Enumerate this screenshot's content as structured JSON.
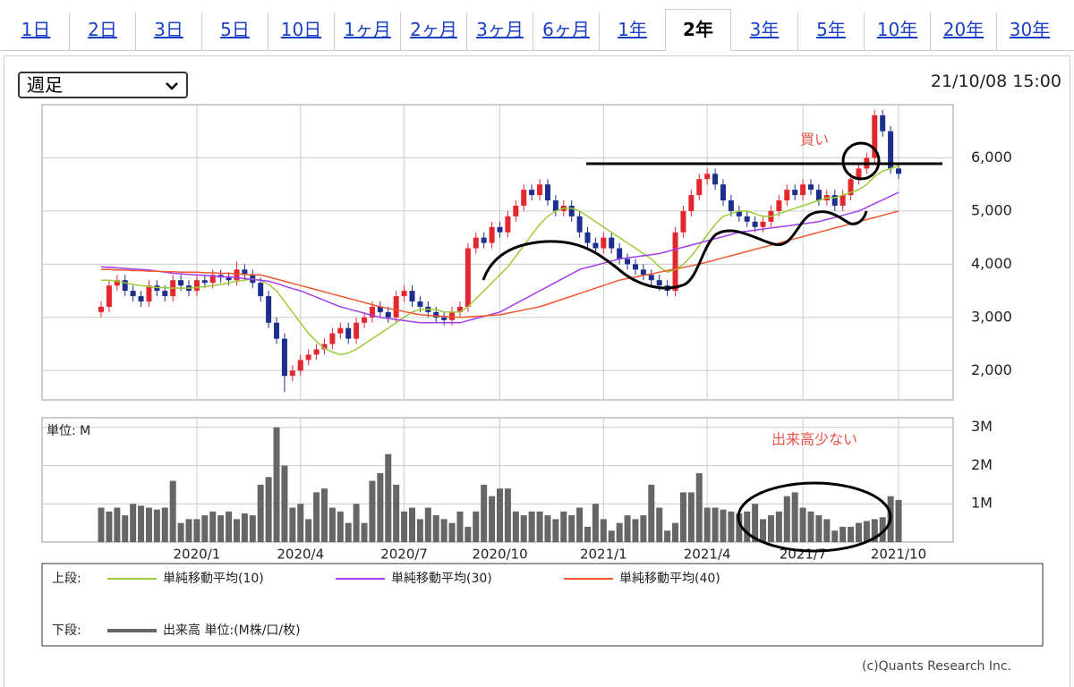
{
  "tabs": [
    "1日",
    "2日",
    "3日",
    "5日",
    "10日",
    "1ヶ月",
    "2ヶ月",
    "3ヶ月",
    "6ヶ月",
    "1年",
    "2年",
    "3年",
    "5年",
    "10年",
    "20年",
    "30年"
  ],
  "selected_tab": 10,
  "period_select": "週足",
  "timestamp": "21/10/08 15:00",
  "legend_labels": {
    "upper": "上段:",
    "lower": "下段:"
  },
  "copyright": "(c)Quants Research Inc.",
  "chart_data": [
    {
      "type": "candlestick",
      "up_color": "#e4262f",
      "down_color": "#1c2f8c",
      "open": [
        3100,
        3200,
        3600,
        3700,
        3500,
        3400,
        3300,
        3600,
        3500,
        3400,
        3700,
        3600,
        3500,
        3700,
        3650,
        3800,
        3750,
        3700,
        3900,
        3800,
        3650,
        3400,
        2900,
        2600,
        1900,
        2000,
        2200,
        2300,
        2400,
        2500,
        2700,
        2800,
        2600,
        2900,
        3000,
        3200,
        3100,
        3000,
        3400,
        3500,
        3300,
        3200,
        3100,
        3000,
        2950,
        3100,
        3200,
        4300,
        4500,
        4400,
        4700,
        4600,
        4900,
        5100,
        5400,
        5300,
        5500,
        5200,
        5000,
        5100,
        4900,
        4600,
        4400,
        4300,
        4500,
        4300,
        4100,
        4000,
        3900,
        3800,
        3700,
        3600,
        3500,
        4600,
        5000,
        5300,
        5600,
        5700,
        5500,
        5200,
        5000,
        4900,
        4800,
        4700,
        4800,
        5000,
        5200,
        5400,
        5300,
        5500,
        5400,
        5200,
        5300,
        5100,
        5300,
        5600,
        5800,
        6000,
        6800,
        6500,
        5800
      ],
      "high": [
        3300,
        3700,
        3800,
        3800,
        3600,
        3500,
        3700,
        3700,
        3600,
        3800,
        3800,
        3700,
        3800,
        3800,
        3900,
        3900,
        3850,
        4050,
        4000,
        3900,
        3750,
        3500,
        3000,
        2700,
        2100,
        2300,
        2400,
        2500,
        2600,
        2800,
        2900,
        2900,
        3000,
        3100,
        3300,
        3300,
        3200,
        3500,
        3600,
        3600,
        3400,
        3300,
        3200,
        3100,
        3200,
        3300,
        4400,
        4600,
        4600,
        4800,
        4800,
        5000,
        5200,
        5500,
        5500,
        5600,
        5600,
        5300,
        5200,
        5200,
        5000,
        4700,
        4500,
        4600,
        4600,
        4400,
        4200,
        4100,
        4000,
        3900,
        3800,
        3700,
        4700,
        5100,
        5400,
        5700,
        5800,
        5800,
        5600,
        5300,
        5100,
        5000,
        4900,
        4900,
        5100,
        5300,
        5500,
        5500,
        5600,
        5600,
        5500,
        5400,
        5400,
        5400,
        5700,
        5900,
        6100,
        6900,
        6900,
        6600,
        5900
      ],
      "low": [
        3000,
        3100,
        3500,
        3400,
        3300,
        3200,
        3200,
        3400,
        3300,
        3300,
        3500,
        3400,
        3400,
        3550,
        3550,
        3650,
        3600,
        3600,
        3700,
        3550,
        3300,
        2800,
        2500,
        1600,
        1800,
        1900,
        2100,
        2200,
        2300,
        2400,
        2600,
        2500,
        2500,
        2800,
        2900,
        3000,
        2900,
        2900,
        3300,
        3200,
        3100,
        3000,
        2900,
        2850,
        2850,
        3000,
        3100,
        4200,
        4300,
        4300,
        4500,
        4500,
        4800,
        5000,
        5200,
        5200,
        5100,
        4900,
        4900,
        4800,
        4500,
        4300,
        4200,
        4200,
        4200,
        4000,
        3900,
        3800,
        3700,
        3600,
        3500,
        3400,
        3400,
        4500,
        4900,
        5200,
        5500,
        5400,
        5100,
        4900,
        4800,
        4700,
        4600,
        4600,
        4700,
        4900,
        5100,
        5200,
        5200,
        5300,
        5100,
        5100,
        5000,
        5000,
        5200,
        5500,
        5700,
        5900,
        6400,
        5700,
        5600
      ],
      "close": [
        3200,
        3600,
        3700,
        3500,
        3400,
        3300,
        3600,
        3500,
        3400,
        3700,
        3600,
        3500,
        3700,
        3650,
        3800,
        3750,
        3700,
        3900,
        3800,
        3650,
        3400,
        2900,
        2600,
        1900,
        2000,
        2200,
        2300,
        2400,
        2500,
        2700,
        2800,
        2600,
        2900,
        3000,
        3200,
        3100,
        3000,
        3400,
        3500,
        3300,
        3200,
        3100,
        3000,
        2950,
        3100,
        3200,
        4300,
        4500,
        4400,
        4700,
        4600,
        4900,
        5100,
        5400,
        5300,
        5500,
        5200,
        5000,
        5100,
        4900,
        4600,
        4400,
        4300,
        4500,
        4300,
        4100,
        4000,
        3900,
        3800,
        3700,
        3600,
        3500,
        4600,
        5000,
        5300,
        5600,
        5700,
        5500,
        5200,
        5000,
        4900,
        4800,
        4700,
        4800,
        5000,
        5200,
        5400,
        5300,
        5500,
        5400,
        5200,
        5300,
        5100,
        5300,
        5600,
        5800,
        6000,
        6800,
        6500,
        5800,
        5700
      ],
      "series": [
        {
          "name": "単純移動平均(10)",
          "color": "#9ccc3a",
          "values": [
            3700,
            3700,
            3680,
            3650,
            3620,
            3600,
            3580,
            3560,
            3560,
            3550,
            3550,
            3550,
            3560,
            3580,
            3600,
            3620,
            3650,
            3680,
            3700,
            3720,
            3700,
            3620,
            3500,
            3300,
            3100,
            2900,
            2700,
            2550,
            2420,
            2350,
            2300,
            2330,
            2400,
            2500,
            2600,
            2700,
            2800,
            2900,
            3000,
            3100,
            3150,
            3150,
            3150,
            3100,
            3100,
            3100,
            3200,
            3350,
            3500,
            3650,
            3800,
            3950,
            4150,
            4350,
            4550,
            4750,
            4900,
            5000,
            5050,
            5050,
            5000,
            4900,
            4800,
            4700,
            4600,
            4500,
            4400,
            4300,
            4200,
            4100,
            3950,
            3850,
            3900,
            4000,
            4150,
            4350,
            4550,
            4750,
            4900,
            4950,
            5000,
            5000,
            4950,
            4900,
            4900,
            4950,
            5000,
            5050,
            5100,
            5150,
            5200,
            5250,
            5250,
            5300,
            5350,
            5400,
            5500,
            5650,
            5750,
            5800,
            5850
          ]
        },
        {
          "name": "単純移動平均(30)",
          "color": "#a43cf0",
          "values": [
            3950,
            3940,
            3930,
            3920,
            3910,
            3900,
            3890,
            3870,
            3850,
            3830,
            3820,
            3810,
            3800,
            3790,
            3780,
            3770,
            3760,
            3750,
            3730,
            3710,
            3700,
            3680,
            3640,
            3590,
            3540,
            3500,
            3440,
            3380,
            3320,
            3260,
            3200,
            3160,
            3120,
            3080,
            3040,
            3000,
            2980,
            2960,
            2940,
            2920,
            2900,
            2900,
            2900,
            2900,
            2900,
            2900,
            2940,
            2980,
            3020,
            3060,
            3100,
            3180,
            3260,
            3340,
            3420,
            3500,
            3580,
            3660,
            3740,
            3820,
            3900,
            3940,
            3980,
            4020,
            4060,
            4100,
            4120,
            4140,
            4160,
            4180,
            4200,
            4240,
            4280,
            4320,
            4360,
            4400,
            4440,
            4480,
            4520,
            4560,
            4600,
            4620,
            4640,
            4660,
            4680,
            4700,
            4720,
            4740,
            4760,
            4780,
            4800,
            4840,
            4880,
            4920,
            4960,
            5000,
            5070,
            5140,
            5210,
            5280,
            5350
          ]
        },
        {
          "name": "単純移動平均(40)",
          "color": "#f2572e",
          "values": [
            3900,
            3900,
            3890,
            3890,
            3880,
            3880,
            3870,
            3870,
            3860,
            3860,
            3850,
            3850,
            3850,
            3840,
            3840,
            3830,
            3830,
            3820,
            3810,
            3800,
            3800,
            3760,
            3720,
            3680,
            3640,
            3600,
            3560,
            3520,
            3480,
            3440,
            3400,
            3360,
            3320,
            3280,
            3240,
            3200,
            3170,
            3140,
            3110,
            3080,
            3050,
            3040,
            3030,
            3020,
            3010,
            3000,
            3010,
            3020,
            3030,
            3040,
            3050,
            3080,
            3110,
            3140,
            3170,
            3200,
            3250,
            3300,
            3350,
            3400,
            3450,
            3500,
            3550,
            3600,
            3650,
            3700,
            3730,
            3760,
            3790,
            3820,
            3850,
            3880,
            3910,
            3940,
            3970,
            4000,
            4040,
            4080,
            4120,
            4160,
            4200,
            4240,
            4280,
            4320,
            4360,
            4400,
            4440,
            4480,
            4520,
            4560,
            4600,
            4640,
            4680,
            4720,
            4760,
            4800,
            4840,
            4880,
            4920,
            4960,
            5000
          ]
        }
      ],
      "ylim": [
        1450,
        7000
      ],
      "yticks": [
        {
          "value": 2000,
          "label": "2,000"
        },
        {
          "value": 3000,
          "label": "3,000"
        },
        {
          "value": 4000,
          "label": "4,000"
        },
        {
          "value": 5000,
          "label": "5,000"
        },
        {
          "value": 6000,
          "label": "6,000"
        }
      ],
      "grid": true,
      "annotations": [
        "買い"
      ]
    },
    {
      "type": "bar",
      "unit_label": "単位: M",
      "categories": [
        null,
        null,
        null,
        null,
        null,
        null,
        null,
        null,
        null,
        null,
        null,
        null,
        "2020/1",
        null,
        null,
        null,
        null,
        null,
        null,
        null,
        null,
        null,
        null,
        null,
        null,
        "2020/4",
        null,
        null,
        null,
        null,
        null,
        null,
        null,
        null,
        null,
        null,
        null,
        null,
        "2020/7",
        null,
        null,
        null,
        null,
        null,
        null,
        null,
        null,
        null,
        null,
        null,
        "2020/10",
        null,
        null,
        null,
        null,
        null,
        null,
        null,
        null,
        null,
        null,
        null,
        null,
        "2021/1",
        null,
        null,
        null,
        null,
        null,
        null,
        null,
        null,
        null,
        null,
        null,
        null,
        "2021/4",
        null,
        null,
        null,
        null,
        null,
        null,
        null,
        null,
        null,
        null,
        null,
        "2021/7",
        null,
        null,
        null,
        null,
        null,
        null,
        null,
        null,
        null,
        null,
        null,
        "2021/10"
      ],
      "series": [
        {
          "name": "出来高 単位:(M株/口/枚)",
          "color": "#666666",
          "values": [
            0.9,
            0.8,
            0.9,
            0.7,
            1.0,
            0.95,
            0.9,
            0.85,
            0.9,
            1.6,
            0.5,
            0.6,
            0.6,
            0.7,
            0.8,
            0.7,
            0.8,
            0.6,
            0.75,
            0.7,
            1.5,
            1.7,
            3.0,
            2.0,
            0.9,
            1.0,
            0.6,
            1.3,
            1.4,
            0.9,
            0.8,
            0.5,
            1.0,
            0.5,
            1.6,
            1.8,
            2.3,
            1.5,
            0.8,
            0.9,
            0.6,
            0.9,
            0.7,
            0.6,
            0.5,
            0.8,
            0.4,
            0.8,
            1.5,
            1.2,
            1.4,
            1.4,
            0.8,
            0.7,
            0.8,
            0.8,
            0.7,
            0.6,
            0.8,
            0.7,
            0.9,
            0.4,
            1.0,
            0.6,
            0.3,
            0.5,
            0.7,
            0.6,
            0.7,
            1.5,
            0.9,
            0.3,
            0.5,
            1.3,
            1.3,
            1.8,
            0.9,
            0.9,
            0.85,
            0.8,
            0.75,
            0.8,
            1.0,
            0.6,
            0.7,
            0.8,
            1.2,
            1.3,
            0.9,
            0.8,
            0.7,
            0.6,
            0.3,
            0.4,
            0.4,
            0.5,
            0.55,
            0.6,
            0.65,
            1.2,
            1.1
          ]
        }
      ],
      "ylim": [
        0,
        3.25
      ],
      "yticks": [
        {
          "value": 1,
          "label": "1M"
        },
        {
          "value": 2,
          "label": "2M"
        },
        {
          "value": 3,
          "label": "3M"
        }
      ],
      "grid": true,
      "annotations": [
        "出来高少ない"
      ]
    }
  ]
}
